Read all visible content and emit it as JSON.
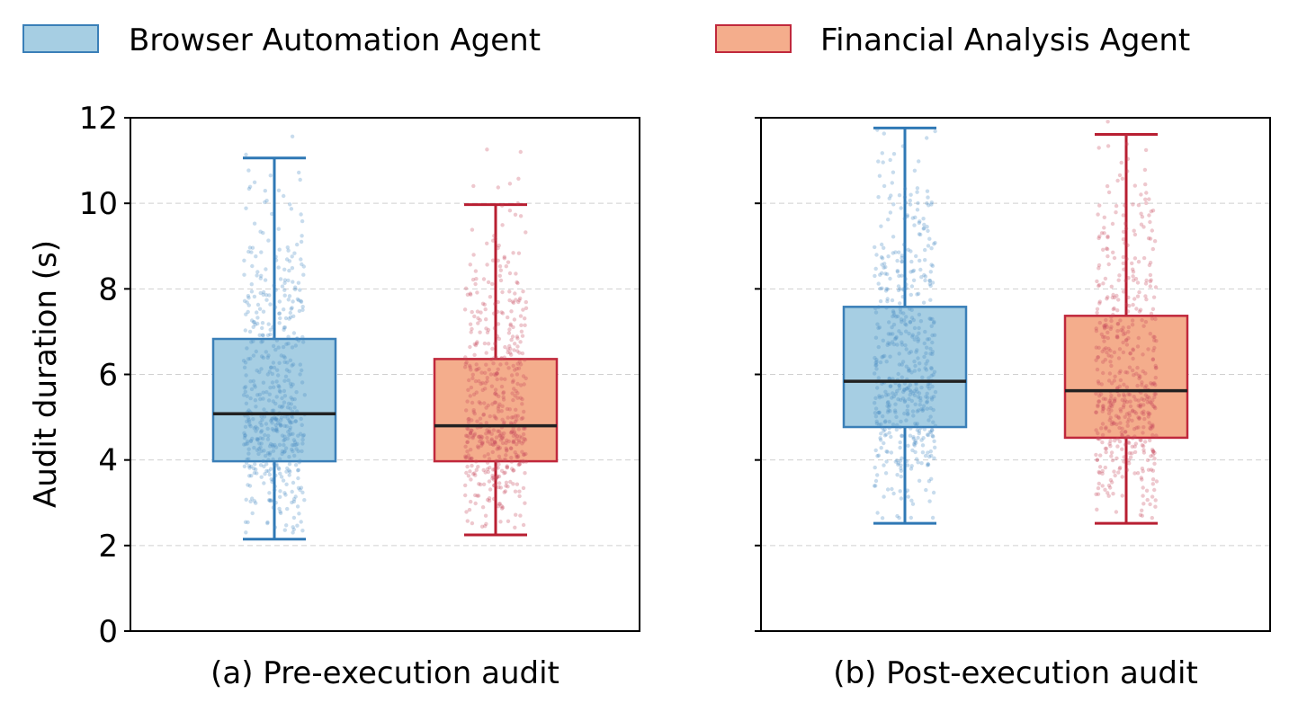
{
  "chart_data": {
    "type": "box",
    "legend": {
      "placement": "top",
      "entries": [
        {
          "label": "Browser Automation Agent",
          "fill": "#a6cee3",
          "edge": "#3a7fb8"
        },
        {
          "label": "Financial Analysis Agent",
          "fill": "#f4ad8c",
          "edge": "#c0283c"
        }
      ]
    },
    "ylabel": "Audit duration (s)",
    "ylim": [
      0,
      12
    ],
    "yticks": [
      0,
      2,
      4,
      6,
      8,
      10,
      12
    ],
    "grid": "horizontal-dashed",
    "series_colors": {
      "browser": {
        "fill": "#a6cee3",
        "edge": "#3a7fb8",
        "whisker": "#2f78b5",
        "point": "#4a8cc4"
      },
      "financial": {
        "fill": "#f4ad8c",
        "edge": "#c0283c",
        "whisker": "#b81f32",
        "point": "#c84a5c"
      },
      "median": "#222222"
    },
    "panels": [
      {
        "title": "(a) Pre-execution audit",
        "boxes": [
          {
            "series": "Browser Automation Agent",
            "whisker_low": 2.15,
            "q1": 3.97,
            "median": 5.08,
            "q3": 6.83,
            "whisker_high": 11.06,
            "points_min": 2.3,
            "points_max": 11.9
          },
          {
            "series": "Financial Analysis Agent",
            "whisker_low": 2.25,
            "q1": 3.97,
            "median": 4.8,
            "q3": 6.36,
            "whisker_high": 9.97,
            "points_min": 2.4,
            "points_max": 11.9
          }
        ]
      },
      {
        "title": "(b) Post-execution audit",
        "boxes": [
          {
            "series": "Browser Automation Agent",
            "whisker_low": 2.52,
            "q1": 4.77,
            "median": 5.84,
            "q3": 7.58,
            "whisker_high": 11.76,
            "points_min": 2.6,
            "points_max": 11.95
          },
          {
            "series": "Financial Analysis Agent",
            "whisker_low": 2.52,
            "q1": 4.52,
            "median": 5.62,
            "q3": 7.37,
            "whisker_high": 11.61,
            "points_min": 2.6,
            "points_max": 11.95
          }
        ]
      }
    ]
  }
}
